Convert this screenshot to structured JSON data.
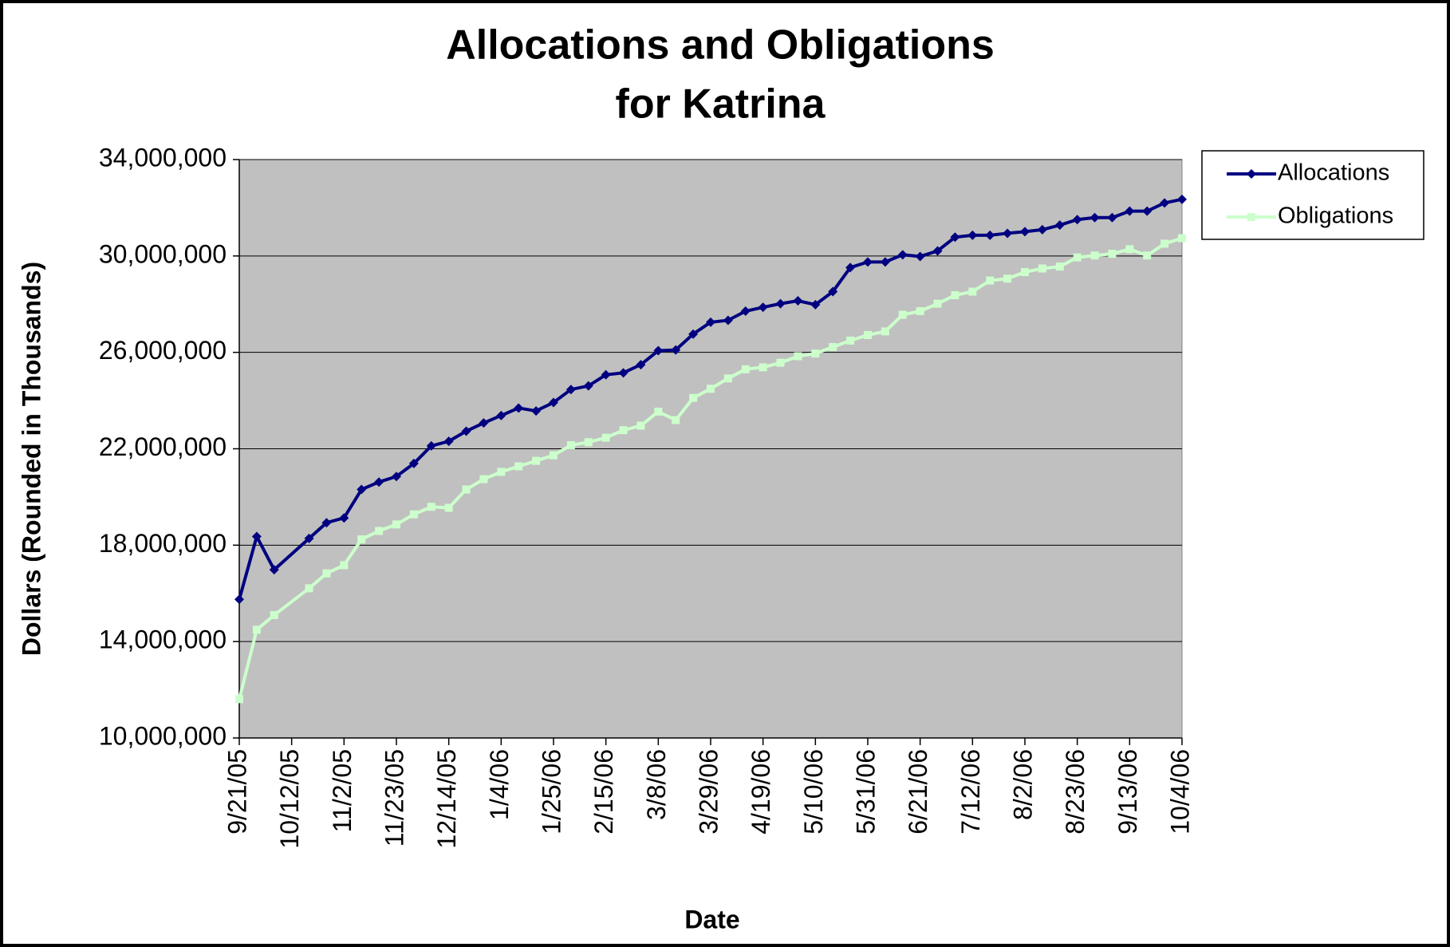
{
  "chart_data": {
    "type": "line",
    "title": [
      "Allocations and Obligations",
      "for Katrina"
    ],
    "x_label": "Date",
    "y_label": "Dollars (Rounded in Thousands)",
    "x": [
      "9/21/05",
      "9/28/05",
      "10/5/05",
      "10/19/05",
      "10/26/05",
      "11/2/05",
      "11/9/05",
      "11/16/05",
      "11/23/05",
      "11/30/05",
      "12/7/05",
      "12/14/05",
      "12/21/05",
      "12/28/05",
      "1/4/06",
      "1/11/06",
      "1/18/06",
      "1/25/06",
      "2/1/06",
      "2/8/06",
      "2/15/06",
      "2/22/06",
      "3/1/06",
      "3/8/06",
      "3/15/06",
      "3/22/06",
      "3/29/06",
      "4/5/06",
      "4/12/06",
      "4/19/06",
      "4/26/06",
      "5/3/06",
      "5/10/06",
      "5/17/06",
      "5/24/06",
      "5/31/06",
      "6/7/06",
      "6/14/06",
      "6/21/06",
      "6/28/06",
      "7/5/06",
      "7/12/06",
      "7/19/06",
      "7/26/06",
      "8/2/06",
      "8/9/06",
      "8/16/06",
      "8/23/06",
      "8/30/06",
      "9/6/06",
      "9/13/06",
      "9/20/06",
      "9/27/06",
      "10/4/06"
    ],
    "series": [
      {
        "name": "Allocations",
        "color": "#000080",
        "marker": "diamond",
        "values": [
          15750000,
          18360000,
          16980000,
          18280000,
          18930000,
          19130000,
          20310000,
          20620000,
          20850000,
          21390000,
          22120000,
          22310000,
          22730000,
          23070000,
          23380000,
          23690000,
          23570000,
          23920000,
          24460000,
          24610000,
          25070000,
          25150000,
          25490000,
          26070000,
          26100000,
          26760000,
          27250000,
          27330000,
          27710000,
          27870000,
          28020000,
          28140000,
          27980000,
          28520000,
          29520000,
          29750000,
          29750000,
          30050000,
          29980000,
          30210000,
          30780000,
          30860000,
          30860000,
          30940000,
          31010000,
          31090000,
          31280000,
          31510000,
          31590000,
          31590000,
          31860000,
          31860000,
          32200000,
          32350000
        ]
      },
      {
        "name": "Obligations",
        "color": "#ccffcc",
        "marker": "square",
        "values": [
          11610000,
          14490000,
          15100000,
          16210000,
          16830000,
          17170000,
          18240000,
          18590000,
          18860000,
          19280000,
          19590000,
          19550000,
          20310000,
          20740000,
          21040000,
          21270000,
          21500000,
          21730000,
          22150000,
          22270000,
          22460000,
          22770000,
          22960000,
          23540000,
          23190000,
          24110000,
          24490000,
          24920000,
          25300000,
          25380000,
          25570000,
          25840000,
          25950000,
          26220000,
          26490000,
          26720000,
          26870000,
          27560000,
          27710000,
          28020000,
          28370000,
          28520000,
          28980000,
          29060000,
          29330000,
          29480000,
          29560000,
          29940000,
          30020000,
          30090000,
          30280000,
          30020000,
          30510000,
          30740000
        ]
      }
    ],
    "xlim": [
      "9/21/05",
      "10/4/06"
    ],
    "xticks": [
      "9/21/05",
      "10/12/05",
      "11/2/05",
      "11/23/05",
      "12/14/05",
      "1/4/06",
      "1/25/06",
      "2/15/06",
      "3/8/06",
      "3/29/06",
      "4/19/06",
      "5/10/06",
      "5/31/06",
      "6/21/06",
      "7/12/06",
      "8/2/06",
      "8/23/06",
      "9/13/06",
      "10/4/06"
    ],
    "ylim": [
      10000000,
      34000000
    ],
    "yticks": [
      {
        "value": 10000000,
        "label": "10,000,000"
      },
      {
        "value": 14000000,
        "label": "14,000,000"
      },
      {
        "value": 18000000,
        "label": "18,000,000"
      },
      {
        "value": 22000000,
        "label": "22,000,000"
      },
      {
        "value": 26000000,
        "label": "26,000,000"
      },
      {
        "value": 30000000,
        "label": "30,000,000"
      },
      {
        "value": 34000000,
        "label": "34,000,000"
      }
    ],
    "grid": true,
    "plot_background": "#c0c0c0",
    "legend": "upper right"
  }
}
